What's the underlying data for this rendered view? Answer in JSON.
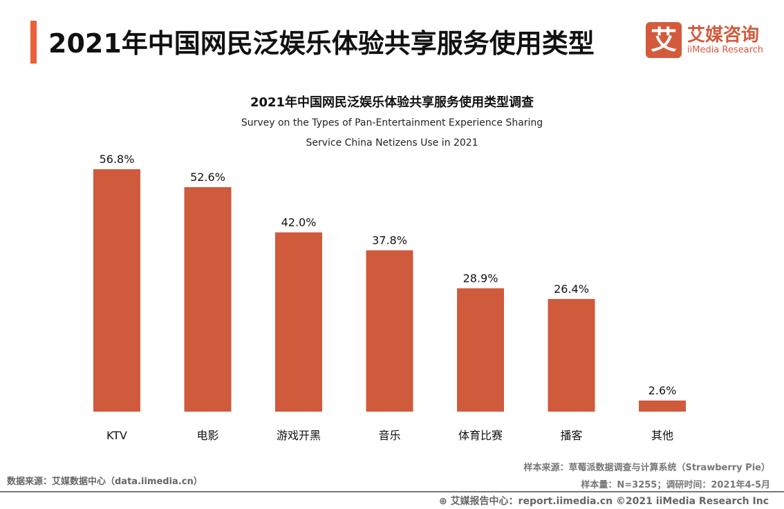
{
  "header": {
    "title": "2021年中国网民泛娱乐体验共享服务使用类型",
    "accent_color": "#e8603c"
  },
  "logo": {
    "mark": "艾",
    "cn": "艾媒咨询",
    "en": "iiMedia Research"
  },
  "chart_data": {
    "type": "bar",
    "title": "2021年中国网民泛娱乐体验共享服务使用类型调查",
    "subtitle_lines": [
      "Survey on the Types of Pan-Entertainment Experience Sharing",
      "Service China Netizens Use in 2021"
    ],
    "categories": [
      "KTV",
      "电影",
      "游戏开黑",
      "音乐",
      "体育比赛",
      "播客",
      "其他"
    ],
    "values": [
      56.8,
      52.6,
      42.0,
      37.8,
      28.9,
      26.4,
      2.6
    ],
    "value_labels": [
      "56.8%",
      "52.6%",
      "42.0%",
      "37.8%",
      "28.9%",
      "26.4%",
      "2.6%"
    ],
    "unit": "%",
    "ylim": [
      0,
      60
    ],
    "grid": false,
    "bar_color": "#d05a3c"
  },
  "footer": {
    "data_source": "数据来源：艾媒数据中心（data.iimedia.cn）",
    "sample_source": "样本来源：草莓派数据调查与计算系统（Strawberry Pie）",
    "sample_size": "样本量：N=3255；调研时间：2021年4-5月",
    "report_center": "艾媒报告中心：report.iimedia.cn ©2021  iiMedia Research  Inc"
  }
}
